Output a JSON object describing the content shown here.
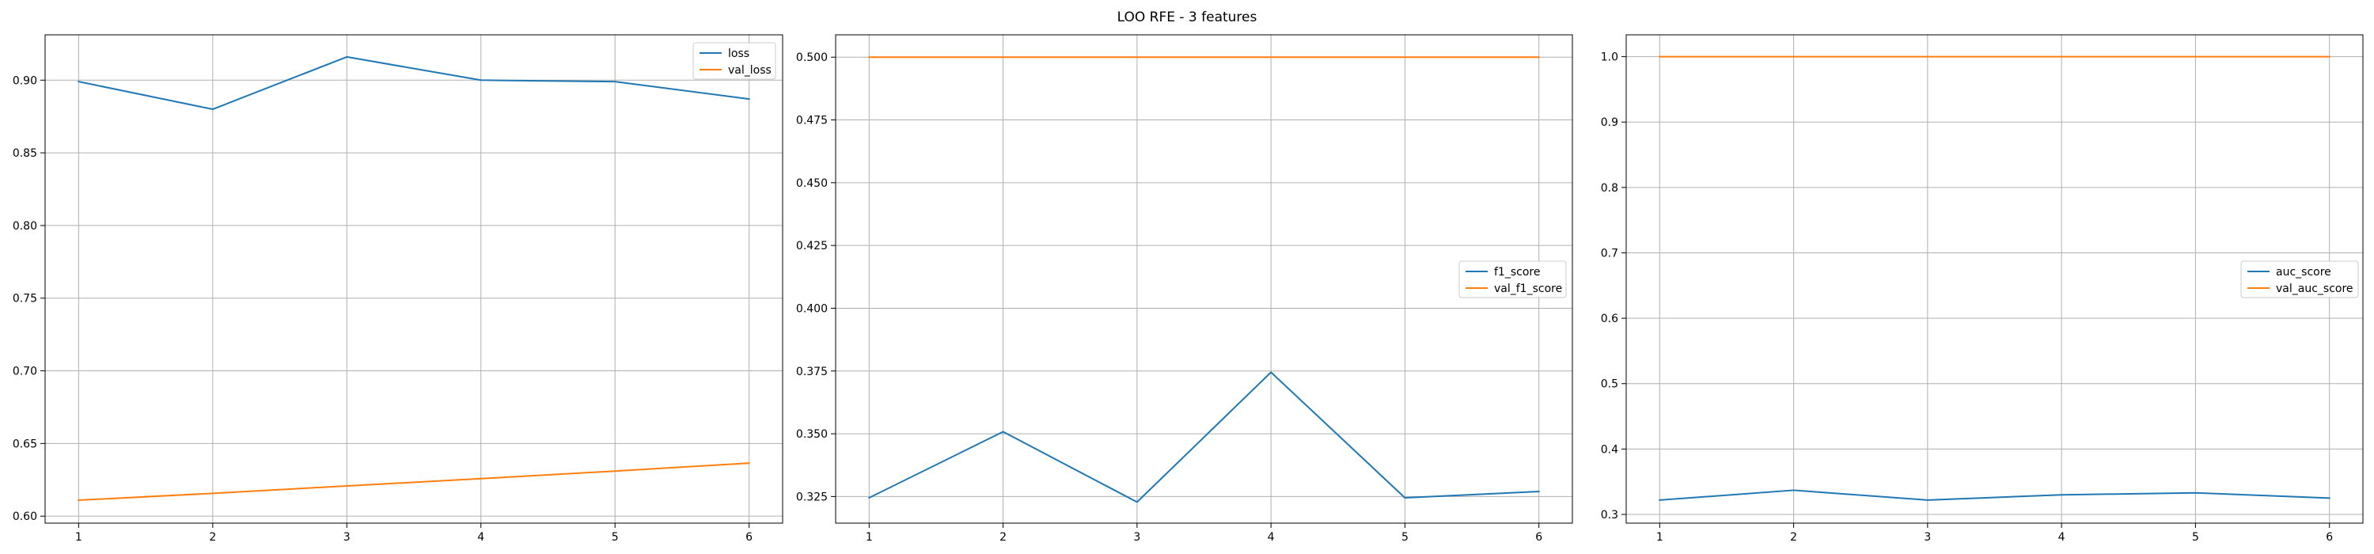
{
  "figure": {
    "suptitle": "LOO RFE - 3 features"
  },
  "chart_data": [
    {
      "type": "line",
      "title": "",
      "xlabel": "",
      "ylabel": "",
      "x": [
        1,
        2,
        3,
        4,
        5,
        6
      ],
      "xticks": [
        1,
        2,
        3,
        4,
        5,
        6
      ],
      "xlim": [
        0.75,
        6.25
      ],
      "ylim": [
        0.5952,
        0.9312
      ],
      "yticks": [
        0.6,
        0.65,
        0.7,
        0.75,
        0.8,
        0.85,
        0.9
      ],
      "ytick_labels": [
        "0.60",
        "0.65",
        "0.70",
        "0.75",
        "0.80",
        "0.85",
        "0.90"
      ],
      "grid": true,
      "legend_position": "upper right",
      "series": [
        {
          "name": "loss",
          "color": "#1f77b4",
          "values": [
            0.899,
            0.88,
            0.916,
            0.9,
            0.899,
            0.887
          ]
        },
        {
          "name": "val_loss",
          "color": "#ff7f0e",
          "values": [
            0.611,
            0.6157,
            0.6208,
            0.6258,
            0.631,
            0.6365
          ]
        }
      ]
    },
    {
      "type": "line",
      "title": "",
      "xlabel": "",
      "ylabel": "",
      "x": [
        1,
        2,
        3,
        4,
        5,
        6
      ],
      "xticks": [
        1,
        2,
        3,
        4,
        5,
        6
      ],
      "xlim": [
        0.75,
        6.25
      ],
      "ylim": [
        0.3144,
        0.5089
      ],
      "yticks": [
        0.325,
        0.35,
        0.375,
        0.4,
        0.425,
        0.45,
        0.475,
        0.5
      ],
      "ytick_labels": [
        "0.325",
        "0.350",
        "0.375",
        "0.400",
        "0.425",
        "0.450",
        "0.475",
        "0.500"
      ],
      "grid": true,
      "legend_position": "center right",
      "series": [
        {
          "name": "f1_score",
          "color": "#1f77b4",
          "values": [
            0.3245,
            0.3508,
            0.3228,
            0.3745,
            0.3245,
            0.327
          ]
        },
        {
          "name": "val_f1_score",
          "color": "#ff7f0e",
          "values": [
            0.5,
            0.5,
            0.5,
            0.5,
            0.5,
            0.5
          ]
        }
      ]
    },
    {
      "type": "line",
      "title": "",
      "xlabel": "",
      "ylabel": "",
      "x": [
        1,
        2,
        3,
        4,
        5,
        6
      ],
      "xticks": [
        1,
        2,
        3,
        4,
        5,
        6
      ],
      "xlim": [
        0.75,
        6.25
      ],
      "ylim": [
        0.2867,
        1.0334
      ],
      "yticks": [
        0.3,
        0.4,
        0.5,
        0.6,
        0.7,
        0.8,
        0.9,
        1.0
      ],
      "ytick_labels": [
        "0.3",
        "0.4",
        "0.5",
        "0.6",
        "0.7",
        "0.8",
        "0.9",
        "1.0"
      ],
      "grid": true,
      "legend_position": "center right",
      "series": [
        {
          "name": "auc_score",
          "color": "#1f77b4",
          "values": [
            0.322,
            0.337,
            0.322,
            0.33,
            0.333,
            0.325
          ]
        },
        {
          "name": "val_auc_score",
          "color": "#ff7f0e",
          "values": [
            1.0,
            1.0,
            1.0,
            1.0,
            1.0,
            1.0
          ]
        }
      ]
    }
  ]
}
